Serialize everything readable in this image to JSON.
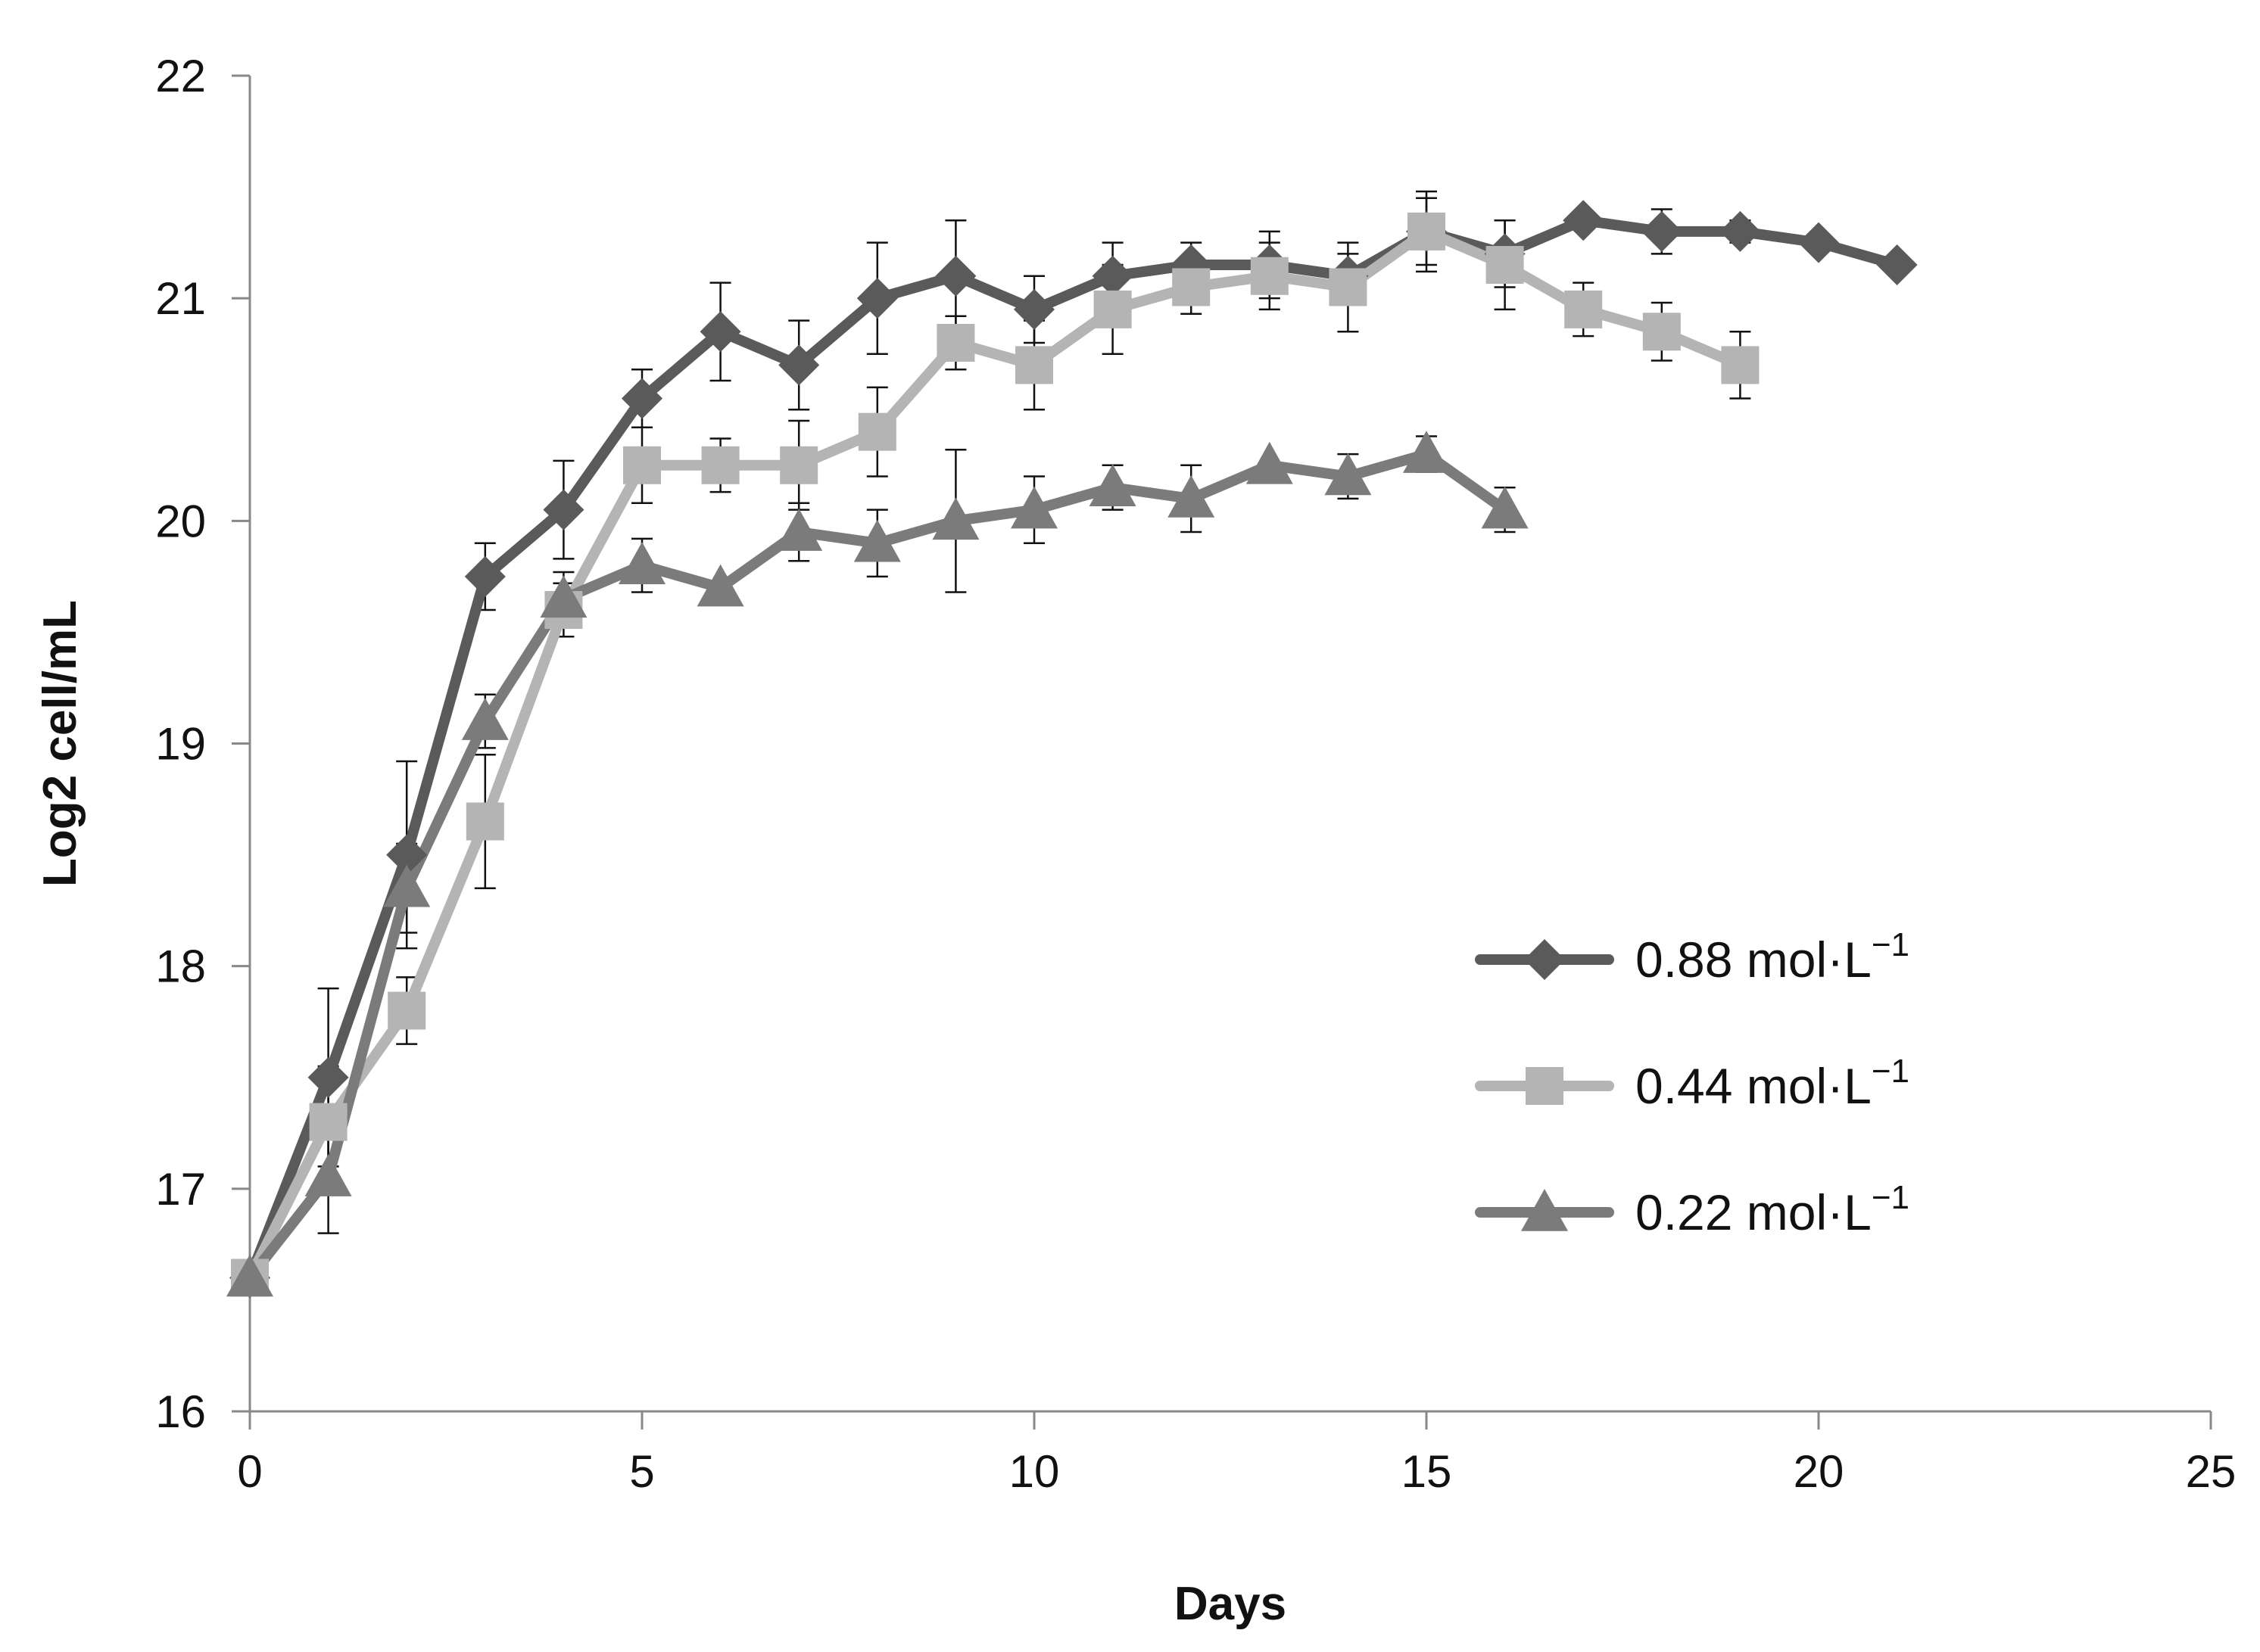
{
  "chart_data": {
    "type": "line",
    "title": "",
    "xlabel": "Days",
    "ylabel": "Log2 cell/mL",
    "xlim": [
      0,
      25
    ],
    "ylim": [
      16,
      22
    ],
    "xticks": [
      "0",
      "5",
      "10",
      "15",
      "20",
      "25"
    ],
    "yticks": [
      "16",
      "17",
      "18",
      "19",
      "20",
      "21",
      "22"
    ],
    "grid": false,
    "legend_position": "right-middle",
    "series": [
      {
        "name": "0.88 mol·L",
        "sup": "−1",
        "marker": "diamond",
        "color": "#5a5a5a",
        "x": [
          0,
          1,
          2,
          3,
          4,
          5,
          6,
          7,
          8,
          9,
          10,
          11,
          12,
          13,
          14,
          15,
          16,
          17,
          18,
          19,
          20,
          21
        ],
        "y": [
          16.6,
          17.5,
          18.5,
          19.75,
          20.05,
          20.55,
          20.85,
          20.7,
          21.0,
          21.1,
          20.95,
          21.1,
          21.15,
          21.15,
          21.1,
          21.3,
          21.2,
          21.35,
          21.3,
          21.3,
          21.25,
          21.15
        ],
        "err": [
          0,
          0.4,
          0.42,
          0.15,
          0.22,
          0.13,
          0.22,
          0.2,
          0.25,
          0.25,
          0.15,
          0.15,
          0.1,
          0.15,
          0.1,
          0.15,
          0.15,
          0,
          0.1,
          0.05,
          0,
          0
        ]
      },
      {
        "name": "0.44 mol·L",
        "sup": "−1",
        "marker": "square",
        "color": "#b4b4b4",
        "x": [
          0,
          1,
          2,
          3,
          4,
          5,
          6,
          7,
          8,
          9,
          10,
          11,
          12,
          13,
          14,
          15,
          16,
          17,
          18,
          19
        ],
        "y": [
          16.6,
          17.3,
          17.8,
          18.65,
          19.6,
          20.25,
          20.25,
          20.25,
          20.4,
          20.8,
          20.7,
          20.95,
          21.05,
          21.1,
          21.05,
          21.3,
          21.15,
          20.95,
          20.85,
          20.7
        ],
        "err": [
          0,
          0.25,
          0.15,
          0.3,
          0.12,
          0.17,
          0.12,
          0.2,
          0.2,
          0.12,
          0.2,
          0.2,
          0.12,
          0.15,
          0.2,
          0.18,
          0.2,
          0.12,
          0.13,
          0.15
        ]
      },
      {
        "name": "0.22 mol·L",
        "sup": "−1",
        "marker": "triangle",
        "color": "#7b7b7b",
        "x": [
          0,
          1,
          2,
          3,
          4,
          5,
          6,
          7,
          8,
          9,
          10,
          11,
          12,
          13,
          14,
          15,
          16
        ],
        "y": [
          16.6,
          17.05,
          18.35,
          19.1,
          19.65,
          19.8,
          19.7,
          19.95,
          19.9,
          20.0,
          20.05,
          20.15,
          20.1,
          20.25,
          20.2,
          20.3,
          20.05
        ],
        "err": [
          0,
          0.25,
          0.2,
          0.12,
          0.12,
          0.12,
          0,
          0.13,
          0.15,
          0.32,
          0.15,
          0.1,
          0.15,
          0,
          0.1,
          0.08,
          0.1
        ]
      }
    ]
  }
}
